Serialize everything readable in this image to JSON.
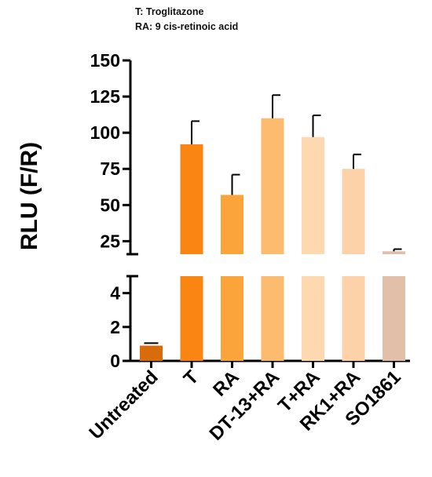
{
  "notes": [
    "T: Troglitazone",
    "RA: 9 cis-retinoic acid"
  ],
  "chart_data": {
    "type": "bar",
    "ylabel": "RLU  (F/R)",
    "categories": [
      "Untreated",
      "T",
      "RA",
      "DT-13+RA",
      "T+RA",
      "RK1+RA",
      "SO1861"
    ],
    "values": [
      0.9,
      92,
      57,
      110,
      97,
      75,
      18
    ],
    "errors": [
      0.15,
      16,
      14,
      16,
      15,
      10,
      1.5
    ],
    "colors": [
      "#d96c0a",
      "#fb8513",
      "#fba43c",
      "#fdbb70",
      "#fed9af",
      "#fdd2a8",
      "#e2bfa8"
    ],
    "axis_breaks": [
      {
        "ylim": [
          0,
          5
        ],
        "ticks": [
          0,
          2,
          4
        ]
      },
      {
        "ylim": [
          16,
          150
        ],
        "ticks": [
          25,
          50,
          75,
          100,
          125,
          150
        ]
      }
    ]
  }
}
